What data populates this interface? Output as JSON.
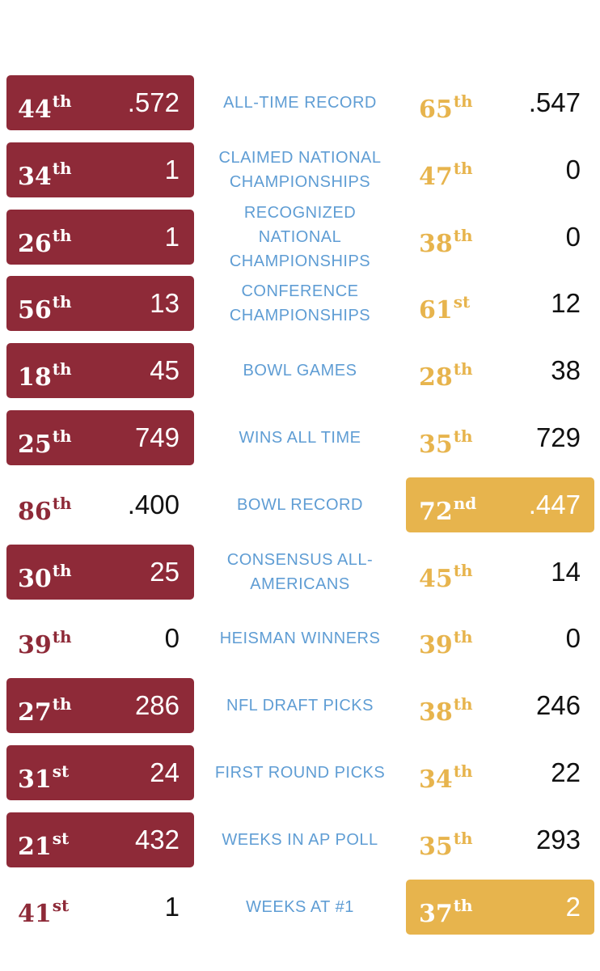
{
  "colors": {
    "left_team": "#8e2a38",
    "right_team": "#e7b44d",
    "category_text": "#5f9dd4"
  },
  "rows": [
    {
      "category": "ALL-TIME RECORD",
      "left_rank": "44",
      "left_suffix": "th",
      "left_value": ".572",
      "right_rank": "65",
      "right_suffix": "th",
      "right_value": ".547",
      "highlight": "left"
    },
    {
      "category": "CLAIMED NATIONAL CHAMPIONSHIPS",
      "left_rank": "34",
      "left_suffix": "th",
      "left_value": "1",
      "right_rank": "47",
      "right_suffix": "th",
      "right_value": "0",
      "highlight": "left"
    },
    {
      "category": "RECOGNIZED NATIONAL CHAMPIONSHIPS",
      "left_rank": "26",
      "left_suffix": "th",
      "left_value": "1",
      "right_rank": "38",
      "right_suffix": "th",
      "right_value": "0",
      "highlight": "left"
    },
    {
      "category": "CONFERENCE CHAMPIONSHIPS",
      "left_rank": "56",
      "left_suffix": "th",
      "left_value": "13",
      "right_rank": "61",
      "right_suffix": "st",
      "right_value": "12",
      "highlight": "left"
    },
    {
      "category": "BOWL GAMES",
      "left_rank": "18",
      "left_suffix": "th",
      "left_value": "45",
      "right_rank": "28",
      "right_suffix": "th",
      "right_value": "38",
      "highlight": "left"
    },
    {
      "category": "WINS ALL TIME",
      "left_rank": "25",
      "left_suffix": "th",
      "left_value": "749",
      "right_rank": "35",
      "right_suffix": "th",
      "right_value": "729",
      "highlight": "left"
    },
    {
      "category": "BOWL RECORD",
      "left_rank": "86",
      "left_suffix": "th",
      "left_value": ".400",
      "right_rank": "72",
      "right_suffix": "nd",
      "right_value": ".447",
      "highlight": "right"
    },
    {
      "category": "CONSENSUS ALL-AMERICANS",
      "left_rank": "30",
      "left_suffix": "th",
      "left_value": "25",
      "right_rank": "45",
      "right_suffix": "th",
      "right_value": "14",
      "highlight": "left"
    },
    {
      "category": "HEISMAN WINNERS",
      "left_rank": "39",
      "left_suffix": "th",
      "left_value": "0",
      "right_rank": "39",
      "right_suffix": "th",
      "right_value": "0",
      "highlight": "none"
    },
    {
      "category": "NFL DRAFT PICKS",
      "left_rank": "27",
      "left_suffix": "th",
      "left_value": "286",
      "right_rank": "38",
      "right_suffix": "th",
      "right_value": "246",
      "highlight": "left"
    },
    {
      "category": "FIRST ROUND PICKS",
      "left_rank": "31",
      "left_suffix": "st",
      "left_value": "24",
      "right_rank": "34",
      "right_suffix": "th",
      "right_value": "22",
      "highlight": "left"
    },
    {
      "category": "WEEKS IN AP POLL",
      "left_rank": "21",
      "left_suffix": "st",
      "left_value": "432",
      "right_rank": "35",
      "right_suffix": "th",
      "right_value": "293",
      "highlight": "left"
    },
    {
      "category": "WEEKS AT #1",
      "left_rank": "41",
      "left_suffix": "st",
      "left_value": "1",
      "right_rank": "37",
      "right_suffix": "th",
      "right_value": "2",
      "highlight": "right"
    }
  ]
}
